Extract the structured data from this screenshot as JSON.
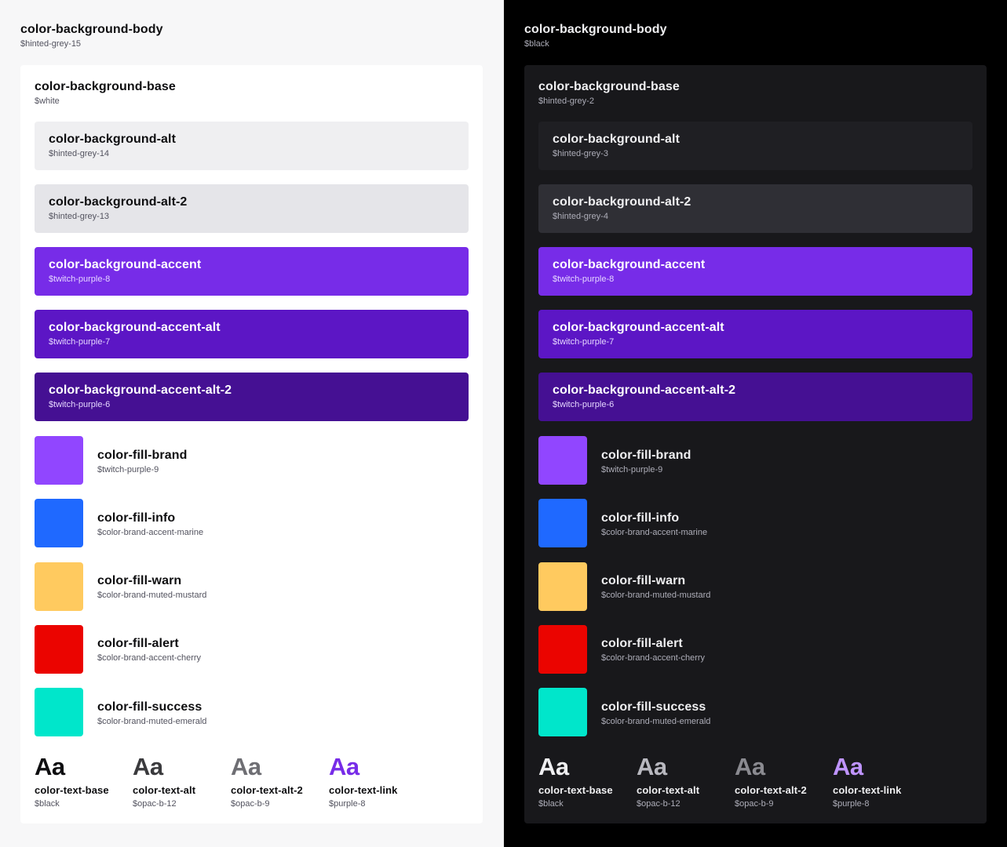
{
  "themes": [
    {
      "id": "light",
      "body": {
        "name": "color-background-body",
        "var": "$hinted-grey-15"
      },
      "base": {
        "name": "color-background-base",
        "var": "$white"
      },
      "backgrounds": [
        {
          "name": "color-background-alt",
          "var": "$hinted-grey-14",
          "color": "#efeff1",
          "accent": false
        },
        {
          "name": "color-background-alt-2",
          "var": "$hinted-grey-13",
          "color": "#e5e5e9",
          "accent": false
        },
        {
          "name": "color-background-accent",
          "var": "$twitch-purple-8",
          "color": "#772ce8",
          "accent": true
        },
        {
          "name": "color-background-accent-alt",
          "var": "$twitch-purple-7",
          "color": "#5c16c5",
          "accent": true
        },
        {
          "name": "color-background-accent-alt-2",
          "var": "$twitch-purple-6",
          "color": "#451093",
          "accent": true
        }
      ],
      "fills": [
        {
          "name": "color-fill-brand",
          "var": "$twitch-purple-9",
          "color": "#9146ff"
        },
        {
          "name": "color-fill-info",
          "var": "$color-brand-accent-marine",
          "color": "#1f69ff"
        },
        {
          "name": "color-fill-warn",
          "var": "$color-brand-muted-mustard",
          "color": "#ffca5f"
        },
        {
          "name": "color-fill-alert",
          "var": "$color-brand-accent-cherry",
          "color": "#eb0400"
        },
        {
          "name": "color-fill-success",
          "var": "$color-brand-muted-emerald",
          "color": "#00e6cb"
        }
      ],
      "texts": [
        {
          "sample": "Aa",
          "name": "color-text-base",
          "var": "$black",
          "color": "#0e0e10"
        },
        {
          "sample": "Aa",
          "name": "color-text-alt",
          "var": "$opac-b-12",
          "color": "#3a3a3d"
        },
        {
          "sample": "Aa",
          "name": "color-text-alt-2",
          "var": "$opac-b-9",
          "color": "#6e6e73"
        },
        {
          "sample": "Aa",
          "name": "color-text-link",
          "var": "$purple-8",
          "color": "#772ce8"
        }
      ]
    },
    {
      "id": "dark",
      "body": {
        "name": "color-background-body",
        "var": "$black"
      },
      "base": {
        "name": "color-background-base",
        "var": "$hinted-grey-2"
      },
      "backgrounds": [
        {
          "name": "color-background-alt",
          "var": "$hinted-grey-3",
          "color": "#1f1f23",
          "accent": false
        },
        {
          "name": "color-background-alt-2",
          "var": "$hinted-grey-4",
          "color": "#2f2f35",
          "accent": false
        },
        {
          "name": "color-background-accent",
          "var": "$twitch-purple-8",
          "color": "#772ce8",
          "accent": true
        },
        {
          "name": "color-background-accent-alt",
          "var": "$twitch-purple-7",
          "color": "#5c16c5",
          "accent": true
        },
        {
          "name": "color-background-accent-alt-2",
          "var": "$twitch-purple-6",
          "color": "#451093",
          "accent": true
        }
      ],
      "fills": [
        {
          "name": "color-fill-brand",
          "var": "$twitch-purple-9",
          "color": "#9146ff"
        },
        {
          "name": "color-fill-info",
          "var": "$color-brand-accent-marine",
          "color": "#1f69ff"
        },
        {
          "name": "color-fill-warn",
          "var": "$color-brand-muted-mustard",
          "color": "#ffca5f"
        },
        {
          "name": "color-fill-alert",
          "var": "$color-brand-accent-cherry",
          "color": "#eb0400"
        },
        {
          "name": "color-fill-success",
          "var": "$color-brand-muted-emerald",
          "color": "#00e6cb"
        }
      ],
      "texts": [
        {
          "sample": "Aa",
          "name": "color-text-base",
          "var": "$black",
          "color": "#efeff1"
        },
        {
          "sample": "Aa",
          "name": "color-text-alt",
          "var": "$opac-b-12",
          "color": "#b8b8bf"
        },
        {
          "sample": "Aa",
          "name": "color-text-alt-2",
          "var": "$opac-b-9",
          "color": "#8a8a90"
        },
        {
          "sample": "Aa",
          "name": "color-text-link",
          "var": "$purple-8",
          "color": "#bf94ff"
        }
      ]
    }
  ]
}
